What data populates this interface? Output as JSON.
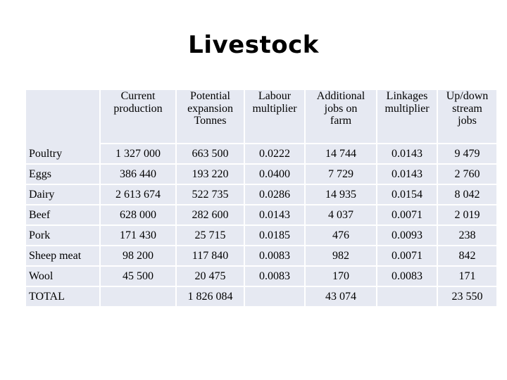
{
  "title": "Livestock",
  "table": {
    "headers": [
      {
        "lines": [
          ""
        ]
      },
      {
        "lines": [
          "Current",
          "production"
        ]
      },
      {
        "lines": [
          "Potential",
          "expansion",
          "Tonnes"
        ]
      },
      {
        "lines": [
          "Labour",
          "multiplier"
        ]
      },
      {
        "lines": [
          "Additional",
          "jobs on",
          "farm"
        ]
      },
      {
        "lines": [
          "Linkages",
          "multiplier"
        ]
      },
      {
        "lines": [
          "Up/down",
          "stream",
          "jobs"
        ]
      }
    ],
    "rows": [
      {
        "label": "Poultry",
        "current": "1 327 000",
        "potential": "663 500",
        "labour": "0.0222",
        "additional": "14 744",
        "linkages": "0.0143",
        "updown": "9 479"
      },
      {
        "label": "Eggs",
        "current": "386 440",
        "potential": "193 220",
        "labour": "0.0400",
        "additional": "7 729",
        "linkages": "0.0143",
        "updown": "2 760"
      },
      {
        "label": "Dairy",
        "current": "2 613 674",
        "potential": "522 735",
        "labour": "0.0286",
        "additional": "14 935",
        "linkages": "0.0154",
        "updown": "8 042"
      },
      {
        "label": "Beef",
        "current": "628 000",
        "potential": "282 600",
        "labour": "0.0143",
        "additional": "4 037",
        "linkages": "0.0071",
        "updown": "2 019"
      },
      {
        "label": "Pork",
        "current": "171 430",
        "potential": "25 715",
        "labour": "0.0185",
        "additional": "476",
        "linkages": "0.0093",
        "updown": "238"
      },
      {
        "label": "Sheep meat",
        "current": "98 200",
        "potential": "117 840",
        "labour": "0.0083",
        "additional": "982",
        "linkages": "0.0071",
        "updown": "842"
      },
      {
        "label": "Wool",
        "current": "45 500",
        "potential": "20 475",
        "labour": "0.0083",
        "additional": "170",
        "linkages": "0.0083",
        "updown": "171"
      }
    ],
    "total": {
      "label": "TOTAL",
      "current": "",
      "potential": "1 826 084",
      "labour": "",
      "additional": "43 074",
      "linkages": "",
      "updown": "23 550"
    }
  }
}
